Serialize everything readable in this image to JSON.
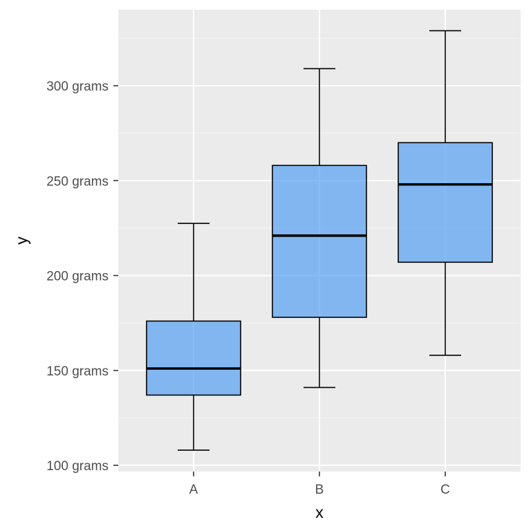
{
  "chart_data": {
    "type": "box",
    "title": "",
    "xlabel": "x",
    "ylabel": "y",
    "categories": [
      "A",
      "B",
      "C"
    ],
    "y_tick_values": [
      100,
      150,
      200,
      250,
      300
    ],
    "y_tick_labels": [
      "100 grams",
      "150 grams",
      "200 grams",
      "250 grams",
      "300 grams"
    ],
    "ylim": [
      97,
      340
    ],
    "grid": true,
    "legend": "none",
    "series": [
      {
        "name": "A",
        "whisker_low": 108,
        "q1": 137,
        "median": 151,
        "q3": 176,
        "whisker_high": 227.5
      },
      {
        "name": "B",
        "whisker_low": 141,
        "q1": 178,
        "median": 221,
        "q3": 258,
        "whisker_high": 309
      },
      {
        "name": "C",
        "whisker_low": 158,
        "q1": 207,
        "median": 248,
        "q3": 270,
        "whisker_high": 329
      }
    ],
    "colors": {
      "box_fill": "#56a0f3",
      "box_fill_opacity": 0.7,
      "box_outline": "#000000",
      "panel_background": "#ebebeb",
      "grid_major": "#ffffff",
      "grid_minor": "#f5f5f5"
    }
  }
}
